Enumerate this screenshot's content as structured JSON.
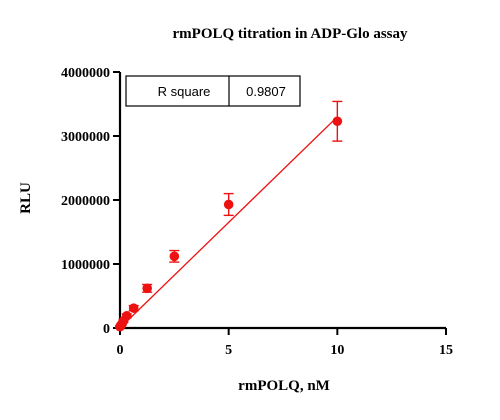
{
  "chart_data": {
    "type": "scatter",
    "title": "rmPOLQ titration in ADP-Glo assay",
    "xlabel": "rmPOLQ, nM",
    "ylabel": "RLU",
    "xlim": [
      0,
      15
    ],
    "ylim": [
      0,
      4000000
    ],
    "x_ticks": [
      0,
      5,
      10,
      15
    ],
    "x_tick_labels": [
      "0",
      "5",
      "10",
      "15"
    ],
    "y_ticks": [
      0,
      1000000,
      2000000,
      3000000,
      4000000
    ],
    "y_tick_labels": [
      "0",
      "1000000",
      "2000000",
      "3000000",
      "4000000"
    ],
    "grid": false,
    "legend": "none",
    "series": [
      {
        "color": "#ee1111",
        "points": [
          {
            "x": 0.0,
            "y": 20000,
            "err": 10000
          },
          {
            "x": 0.04,
            "y": 40000,
            "err": 15000
          },
          {
            "x": 0.08,
            "y": 60000,
            "err": 15000
          },
          {
            "x": 0.16,
            "y": 110000,
            "err": 20000
          },
          {
            "x": 0.31,
            "y": 190000,
            "err": 30000
          },
          {
            "x": 0.63,
            "y": 310000,
            "err": 40000
          },
          {
            "x": 1.25,
            "y": 620000,
            "err": 60000
          },
          {
            "x": 2.5,
            "y": 1120000,
            "err": 90000
          },
          {
            "x": 5.0,
            "y": 1930000,
            "err": 170000
          },
          {
            "x": 10.0,
            "y": 3230000,
            "err": 310000
          }
        ]
      }
    ],
    "fit_line": {
      "color": "#ee1111",
      "x": [
        0,
        10
      ],
      "y": [
        0,
        3300000
      ]
    },
    "stats_table": {
      "label": "R square",
      "value": "0.9807"
    }
  }
}
